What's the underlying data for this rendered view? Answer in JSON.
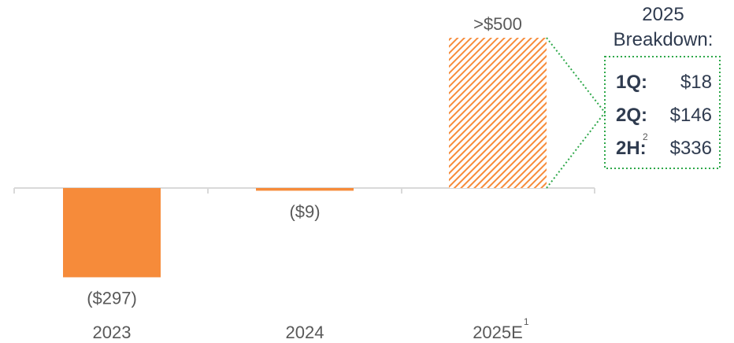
{
  "chart_data": {
    "type": "bar",
    "categories": [
      "2023",
      "2024",
      "2025E"
    ],
    "category_footnotes": [
      "",
      "",
      "1"
    ],
    "values": [
      -297,
      -9,
      500
    ],
    "data_labels": [
      "($297)",
      "($9)",
      ">$500"
    ],
    "estimated": [
      false,
      false,
      true
    ],
    "colors": {
      "bar": "#f68b3a",
      "hatch": "#f68b3a",
      "axis": "#d9d9d9",
      "text": "#595959",
      "callout_border": "#2ea84a",
      "callout_text": "#2f3b4f"
    },
    "grid": false,
    "legend": "none",
    "ylim": [
      -297,
      500
    ]
  },
  "breakdown": {
    "title_line1": "2025",
    "title_line2": "Breakdown:",
    "rows": [
      {
        "label": "1Q:",
        "value": "$18",
        "footnote": ""
      },
      {
        "label": "2Q:",
        "value": "$146",
        "footnote": ""
      },
      {
        "label": "2H:",
        "value": "$336",
        "footnote": "2"
      }
    ]
  }
}
